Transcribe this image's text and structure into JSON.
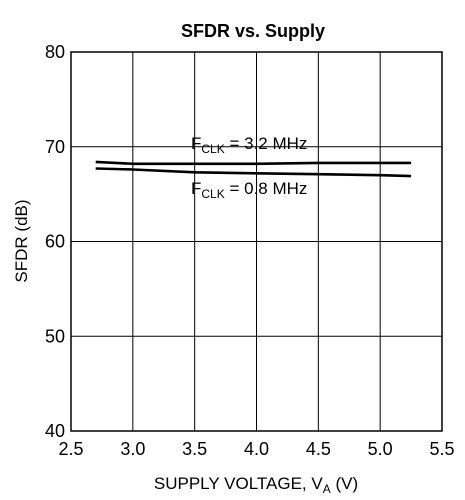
{
  "chart_data": {
    "type": "line",
    "title": "SFDR vs. Supply",
    "xlabel": {
      "main": "SUPPLY VOLTAGE, V",
      "sub": "A",
      "unit": " (V)"
    },
    "ylabel": "SFDR (dB)",
    "xlim": [
      2.5,
      5.5
    ],
    "ylim": [
      40,
      80
    ],
    "x_ticks": [
      2.5,
      3.0,
      3.5,
      4.0,
      4.5,
      5.0,
      5.5
    ],
    "x_tick_labels": [
      "2.5",
      "3.0",
      "3.5",
      "4.0",
      "4.5",
      "5.0",
      "5.5"
    ],
    "y_ticks": [
      40,
      50,
      60,
      70,
      80
    ],
    "y_tick_labels": [
      "40",
      "50",
      "60",
      "70",
      "80"
    ],
    "grid": true,
    "series": [
      {
        "name": {
          "main": "F",
          "sub": "CLK",
          "rest": " = 3.2 MHz"
        },
        "x": [
          2.7,
          3.0,
          3.5,
          4.0,
          4.5,
          5.0,
          5.25
        ],
        "y": [
          68.4,
          68.2,
          68.2,
          68.2,
          68.3,
          68.3,
          68.3
        ]
      },
      {
        "name": {
          "main": "F",
          "sub": "CLK",
          "rest": " = 0.8 MHz"
        },
        "x": [
          2.7,
          3.0,
          3.5,
          4.0,
          4.5,
          5.0,
          5.25
        ],
        "y": [
          67.7,
          67.6,
          67.3,
          67.2,
          67.1,
          67.0,
          66.9
        ]
      }
    ]
  }
}
